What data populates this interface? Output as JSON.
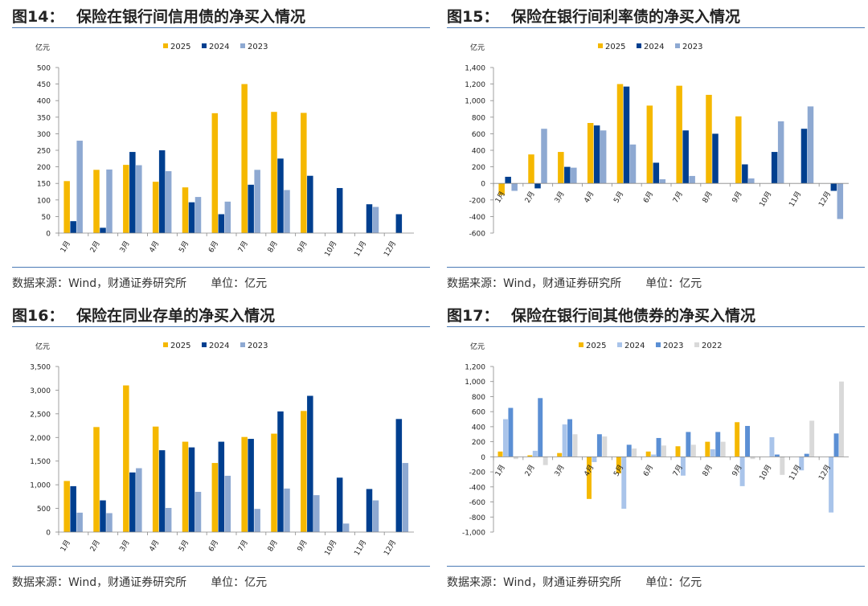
{
  "charts": [
    {
      "figure": "图14：",
      "heading": "保险在银行间信用债的净买入情况",
      "source": "数据来源：Wind，财通证券研究所",
      "unit": "单位：亿元",
      "chart_data": {
        "type": "bar",
        "title": "保险在银行间信用债的净买入情况",
        "ylabel": "亿元",
        "ylim": [
          0,
          500
        ],
        "yticks": [
          0,
          50,
          100,
          150,
          200,
          250,
          300,
          350,
          400,
          450,
          500
        ],
        "ytick_labels": [
          "0",
          "50",
          "100",
          "150",
          "200",
          "250",
          "300",
          "350",
          "400",
          "450",
          "500"
        ],
        "categories": [
          "1月",
          "2月",
          "3月",
          "4月",
          "5月",
          "6月",
          "7月",
          "8月",
          "9月",
          "10月",
          "11月",
          "12月"
        ],
        "legend_position": "top-center",
        "series": [
          {
            "name": "2025",
            "color": "#f5b800",
            "values": [
              157,
              191,
              206,
              155,
              138,
              362,
              450,
              366,
              363,
              null,
              null,
              null
            ]
          },
          {
            "name": "2024",
            "color": "#003f8f",
            "values": [
              36,
              16,
              245,
              250,
              93,
              57,
              146,
              225,
              173,
              136,
              87,
              57
            ]
          },
          {
            "name": "2023",
            "color": "#8ea9d2",
            "values": [
              279,
              192,
              205,
              187,
              109,
              95,
              191,
              130,
              null,
              null,
              79,
              null
            ]
          }
        ]
      }
    },
    {
      "figure": "图15：",
      "heading": "保险在银行间利率债的净买入情况",
      "source": "数据来源：Wind，财通证券研究所",
      "unit": "单位：亿元",
      "chart_data": {
        "type": "bar",
        "title": "保险在银行间利率债的净买入情况",
        "ylabel": "亿元",
        "ylim": [
          -600,
          1400
        ],
        "yticks": [
          -600,
          -400,
          -200,
          0,
          200,
          400,
          600,
          800,
          1000,
          1200,
          1400
        ],
        "ytick_labels": [
          "-600",
          "-400",
          "-200",
          "0",
          "200",
          "400",
          "600",
          "800",
          "1,000",
          "1,200",
          "1,400"
        ],
        "categories": [
          "1月",
          "2月",
          "3月",
          "4月",
          "5月",
          "6月",
          "7月",
          "8月",
          "9月",
          "10月",
          "11月",
          "12月"
        ],
        "legend_position": "top-center",
        "series": [
          {
            "name": "2025",
            "color": "#f5b800",
            "values": [
              -140,
              350,
              380,
              730,
              1200,
              940,
              1180,
              1070,
              810,
              null,
              null,
              null
            ]
          },
          {
            "name": "2024",
            "color": "#003f8f",
            "values": [
              80,
              -60,
              200,
              700,
              1170,
              250,
              640,
              600,
              230,
              380,
              660,
              -90
            ]
          },
          {
            "name": "2023",
            "color": "#8ea9d2",
            "values": [
              -90,
              660,
              190,
              640,
              470,
              50,
              90,
              null,
              60,
              750,
              930,
              -430
            ]
          }
        ]
      }
    },
    {
      "figure": "图16：",
      "heading": "保险在同业存单的净买入情况",
      "source": "数据来源：Wind，财通证券研究所",
      "unit": "单位：亿元",
      "chart_data": {
        "type": "bar",
        "title": "保险在同业存单的净买入情况",
        "ylabel": "亿元",
        "ylim": [
          0,
          3500
        ],
        "yticks": [
          0,
          500,
          1000,
          1500,
          2000,
          2500,
          3000,
          3500
        ],
        "ytick_labels": [
          "0",
          "500",
          "1,000",
          "1,500",
          "2,000",
          "2,500",
          "3,000",
          "3,500"
        ],
        "categories": [
          "1月",
          "2月",
          "3月",
          "4月",
          "5月",
          "6月",
          "7月",
          "8月",
          "9月",
          "10月",
          "11月",
          "12月"
        ],
        "legend_position": "top-center",
        "series": [
          {
            "name": "2025",
            "color": "#f5b800",
            "values": [
              1080,
              2220,
              3100,
              2230,
              1910,
              1460,
              2010,
              2080,
              2560,
              null,
              null,
              null
            ]
          },
          {
            "name": "2024",
            "color": "#003f8f",
            "values": [
              970,
              670,
              1260,
              1730,
              1790,
              1910,
              1970,
              2550,
              2880,
              1150,
              910,
              2390
            ]
          },
          {
            "name": "2023",
            "color": "#8ea9d2",
            "values": [
              410,
              400,
              1350,
              510,
              850,
              1190,
              490,
              920,
              780,
              180,
              670,
              1460
            ]
          }
        ]
      }
    },
    {
      "figure": "图17：",
      "heading": "保险在银行间其他债券的净买入情况",
      "source": "数据来源：Wind，财通证券研究所",
      "unit": "单位：亿元",
      "chart_data": {
        "type": "bar",
        "title": "保险在银行间其他债券的净买入情况",
        "ylabel": "亿元",
        "ylim": [
          -1000,
          1200
        ],
        "yticks": [
          -1000,
          -800,
          -600,
          -400,
          -200,
          0,
          200,
          400,
          600,
          800,
          1000,
          1200
        ],
        "ytick_labels": [
          "-1,000",
          "-800",
          "-600",
          "-400",
          "-200",
          "0",
          "200",
          "400",
          "600",
          "800",
          "1,000",
          "1,200"
        ],
        "categories": [
          "1月",
          "2月",
          "3月",
          "4月",
          "5月",
          "6月",
          "7月",
          "8月",
          "9月",
          "10月",
          "11月",
          "12月"
        ],
        "legend_position": "top-center",
        "series": [
          {
            "name": "2025",
            "color": "#f5b800",
            "values": [
              70,
              20,
              50,
              -560,
              -220,
              70,
              140,
              200,
              460,
              null,
              null,
              null
            ]
          },
          {
            "name": "2024",
            "color": "#a9c4ea",
            "values": [
              500,
              80,
              430,
              -70,
              -690,
              30,
              -250,
              100,
              -390,
              260,
              -180,
              -740
            ]
          },
          {
            "name": "2023",
            "color": "#5b8fd4",
            "values": [
              650,
              780,
              500,
              300,
              160,
              250,
              330,
              330,
              410,
              30,
              40,
              310
            ]
          },
          {
            "name": "2022",
            "color": "#d9d9d9",
            "values": [
              -30,
              -110,
              300,
              270,
              110,
              150,
              160,
              200,
              -30,
              -240,
              480,
              1000
            ]
          }
        ]
      }
    }
  ]
}
